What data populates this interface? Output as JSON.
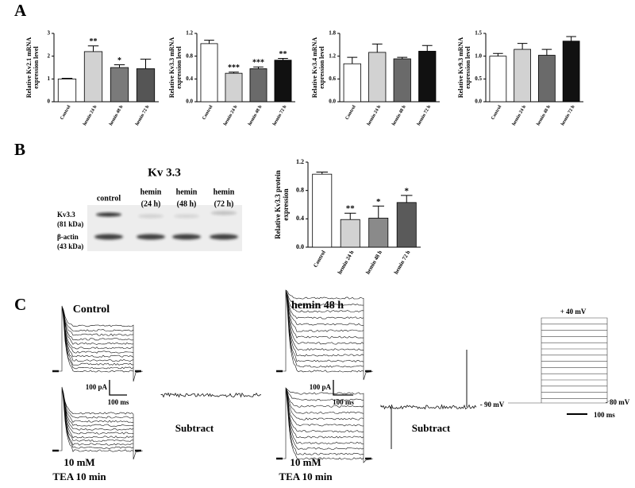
{
  "chart_data": [
    {
      "type": "bar",
      "ylabel": [
        "Relative Kv2.1 mRNA",
        "expression level"
      ],
      "categories": [
        "Control",
        "hemin 24 h",
        "hemin 48 h",
        "hemin 72 h"
      ],
      "values": [
        1.0,
        2.2,
        1.5,
        1.45
      ],
      "errors": [
        0.03,
        0.25,
        0.12,
        0.42
      ],
      "significance": [
        null,
        "**",
        "*",
        null
      ],
      "colors": [
        "#ffffff",
        "#d2d2d2",
        "#7a7a7a",
        "#555555"
      ],
      "ylim": [
        0,
        3
      ],
      "yticks": [
        0,
        1,
        2,
        3
      ]
    },
    {
      "type": "bar",
      "ylabel": [
        "Relative Kv3.3 mRNA",
        "expression level"
      ],
      "categories": [
        "Control",
        "hemin 24 h",
        "hemin 48 h",
        "hemin 72 h"
      ],
      "values": [
        1.02,
        0.5,
        0.58,
        0.73
      ],
      "errors": [
        0.06,
        0.02,
        0.03,
        0.03
      ],
      "significance": [
        null,
        "***",
        "***",
        "**"
      ],
      "colors": [
        "#ffffff",
        "#d2d2d2",
        "#6a6a6a",
        "#111111"
      ],
      "ylim": [
        0,
        1.2
      ],
      "yticks": [
        {
          "value": 0,
          "label": "0.0"
        },
        0.4,
        0.8,
        1.2
      ]
    },
    {
      "type": "bar",
      "ylabel": [
        "Relative Kv3.4 mRNA",
        "expression level"
      ],
      "categories": [
        "Control",
        "hemin 24 h",
        "hemin 48 h",
        "hemin 72 h"
      ],
      "values": [
        1.0,
        1.3,
        1.13,
        1.33
      ],
      "errors": [
        0.17,
        0.22,
        0.04,
        0.15
      ],
      "significance": [
        null,
        null,
        null,
        null
      ],
      "colors": [
        "#ffffff",
        "#d2d2d2",
        "#6a6a6a",
        "#111111"
      ],
      "ylim": [
        0,
        1.8
      ],
      "yticks": [
        {
          "value": 0,
          "label": "0.0"
        },
        0.6,
        1.2,
        1.8
      ]
    },
    {
      "type": "bar",
      "ylabel": [
        "Relative Kv9.3 mRNA",
        "expression level"
      ],
      "categories": [
        "Control",
        "hemin 24 h",
        "hemin 48 h",
        "hemin 72 h"
      ],
      "values": [
        1.0,
        1.15,
        1.02,
        1.33
      ],
      "errors": [
        0.06,
        0.13,
        0.13,
        0.1
      ],
      "significance": [
        null,
        null,
        null,
        null
      ],
      "colors": [
        "#ffffff",
        "#d2d2d2",
        "#6a6a6a",
        "#111111"
      ],
      "ylim": [
        0,
        1.5
      ],
      "yticks": [
        {
          "value": 0,
          "label": "0.0"
        },
        0.5,
        {
          "value": 1,
          "label": "1.0"
        },
        1.5
      ]
    },
    {
      "type": "bar",
      "ylabel": [
        "Relative Kv3.3 protein",
        "expression"
      ],
      "categories": [
        "Control",
        "hemin 24 h",
        "hemin 48 h",
        "hemin 72 h"
      ],
      "values": [
        1.03,
        0.39,
        0.41,
        0.63
      ],
      "errors": [
        0.03,
        0.09,
        0.17,
        0.1
      ],
      "significance": [
        null,
        "**",
        "*",
        "*"
      ],
      "colors": [
        "#ffffff",
        "#d2d2d2",
        "#8a8a8a",
        "#5a5a5a"
      ],
      "ylim": [
        0,
        1.2
      ],
      "yticks": [
        {
          "value": 0,
          "label": "0.0"
        },
        0.4,
        0.8,
        1.2
      ]
    }
  ],
  "panel_labels": [
    "A",
    "B",
    "C"
  ],
  "blot": {
    "title": "Kv 3.3",
    "lanes": [
      [
        "control"
      ],
      [
        "hemin",
        "(24 h)"
      ],
      [
        "hemin",
        "(48 h)"
      ],
      [
        "hemin",
        "(72 h)"
      ]
    ],
    "rows": [
      [
        "Kv3.3",
        "(81 kDa)"
      ],
      [
        "β-actin",
        "(43 kDa)"
      ]
    ]
  },
  "electrophysiology": {
    "conditions": [
      "Control",
      "hemin 48 h"
    ],
    "scale_bars": [
      {
        "current": "100 pA",
        "time": "100 ms"
      },
      {
        "current": "100 pA",
        "time": "100 ms"
      }
    ],
    "subtract": [
      "Subtract",
      "Subtract"
    ],
    "treatment": [
      [
        "10 mM",
        "TEA 10 min"
      ],
      [
        "10 mM",
        "TEA 10 min"
      ]
    ],
    "protocol": {
      "top": "+ 40 mV",
      "hold": "- 90 mV",
      "end": "- 80 mV",
      "time": "100 ms"
    }
  }
}
